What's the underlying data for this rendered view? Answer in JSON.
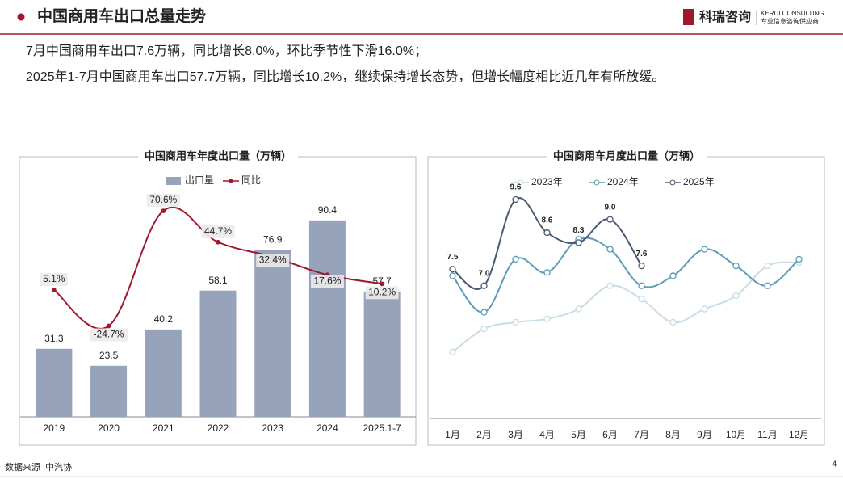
{
  "header": {
    "title": "中国商用车出口总量走势",
    "logo": "科瑞咨询",
    "logo_en": "KERUI CONSULTING",
    "logo_sub": "专业信息咨询供应商"
  },
  "summary": [
    "7月中国商用车出口7.6万辆，同比增长8.0%，环比季节性下滑16.0%；",
    "2025年1-7月中国商用车出口57.7万辆，同比增长10.2%，继续保持增长态势，但增长幅度相比近几年有所放缓。"
  ],
  "chart_data": [
    {
      "type": "bar",
      "title": "中国商用车年度出口量（万辆）",
      "categories": [
        "2019",
        "2020",
        "2021",
        "2022",
        "2023",
        "2024",
        "2025.1-7"
      ],
      "ylim": [
        0,
        100
      ],
      "y2lim": [
        -100,
        80
      ],
      "legend": "top",
      "series": [
        {
          "name": "出口量",
          "type": "bar",
          "color": "#97a3bb",
          "values": [
            31.3,
            23.5,
            40.2,
            58.1,
            76.9,
            90.4,
            57.7
          ]
        },
        {
          "name": "同比",
          "type": "line",
          "axis": "y2",
          "color": "#a0182e",
          "values": [
            5.1,
            -24.7,
            70.6,
            44.7,
            32.4,
            17.6,
            10.2
          ],
          "value_labels": [
            "5.1%",
            "-24.7%",
            "70.6%",
            "44.7%",
            "32.4%",
            "17.6%",
            "10.2%"
          ]
        }
      ]
    },
    {
      "type": "line",
      "title": "中国商用车月度出口量（万辆）",
      "categories": [
        "1月",
        "2月",
        "3月",
        "4月",
        "5月",
        "6月",
        "7月",
        "8月",
        "9月",
        "10月",
        "11月",
        "12月"
      ],
      "ylim": [
        3,
        10
      ],
      "legend": "top",
      "series": [
        {
          "name": "2023年",
          "color": "#c9dce6",
          "values": [
            5.0,
            5.7,
            5.9,
            6.0,
            6.3,
            7.0,
            6.6,
            5.9,
            6.3,
            6.7,
            7.6,
            7.7
          ]
        },
        {
          "name": "2024年",
          "color": "#5b9db8",
          "values": [
            7.3,
            6.2,
            7.8,
            7.4,
            8.4,
            8.1,
            7.0,
            7.3,
            8.1,
            7.6,
            7.0,
            7.8
          ]
        },
        {
          "name": "2025年",
          "color": "#4a5a73",
          "values": [
            7.5,
            7.0,
            9.6,
            8.6,
            8.3,
            9.0,
            7.6,
            null,
            null,
            null,
            null,
            null
          ],
          "value_labels": [
            "7.5",
            "7.0",
            "9.6",
            "8.6",
            "8.3",
            "9.0",
            "7.6",
            null,
            null,
            null,
            null,
            null
          ]
        }
      ]
    }
  ],
  "footer": {
    "source": "数据来源 :中汽协",
    "page": "4"
  }
}
